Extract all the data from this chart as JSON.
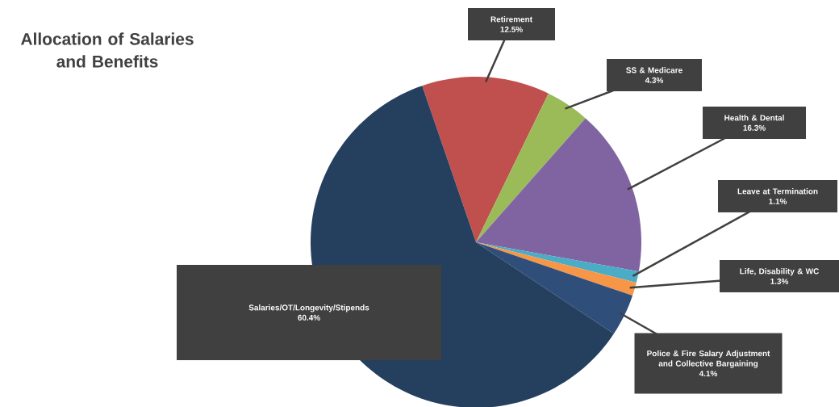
{
  "chart_data": {
    "type": "pie",
    "title": "Allocation of Salaries and Benefits",
    "categories": [
      "Retirement",
      "SS & Medicare",
      "Health & Dental",
      "Leave at Termination",
      "Life, Disability  & WC",
      "Police & Fire Salary Adjustment and Collective Bargaining",
      "Salaries/OT/Longevity/Stipends"
    ],
    "values": [
      12.5,
      4.3,
      16.3,
      1.1,
      1.3,
      4.1,
      60.4
    ],
    "value_labels": [
      "12.5%",
      "4.3%",
      "16.3%",
      "1.1%",
      "1.3%",
      "4.1%",
      "60.4%"
    ],
    "colors": [
      "#c0504d",
      "#9bbb59",
      "#8064a2",
      "#4bacc6",
      "#f79646",
      "#2f4e79",
      "#253f5f"
    ]
  }
}
